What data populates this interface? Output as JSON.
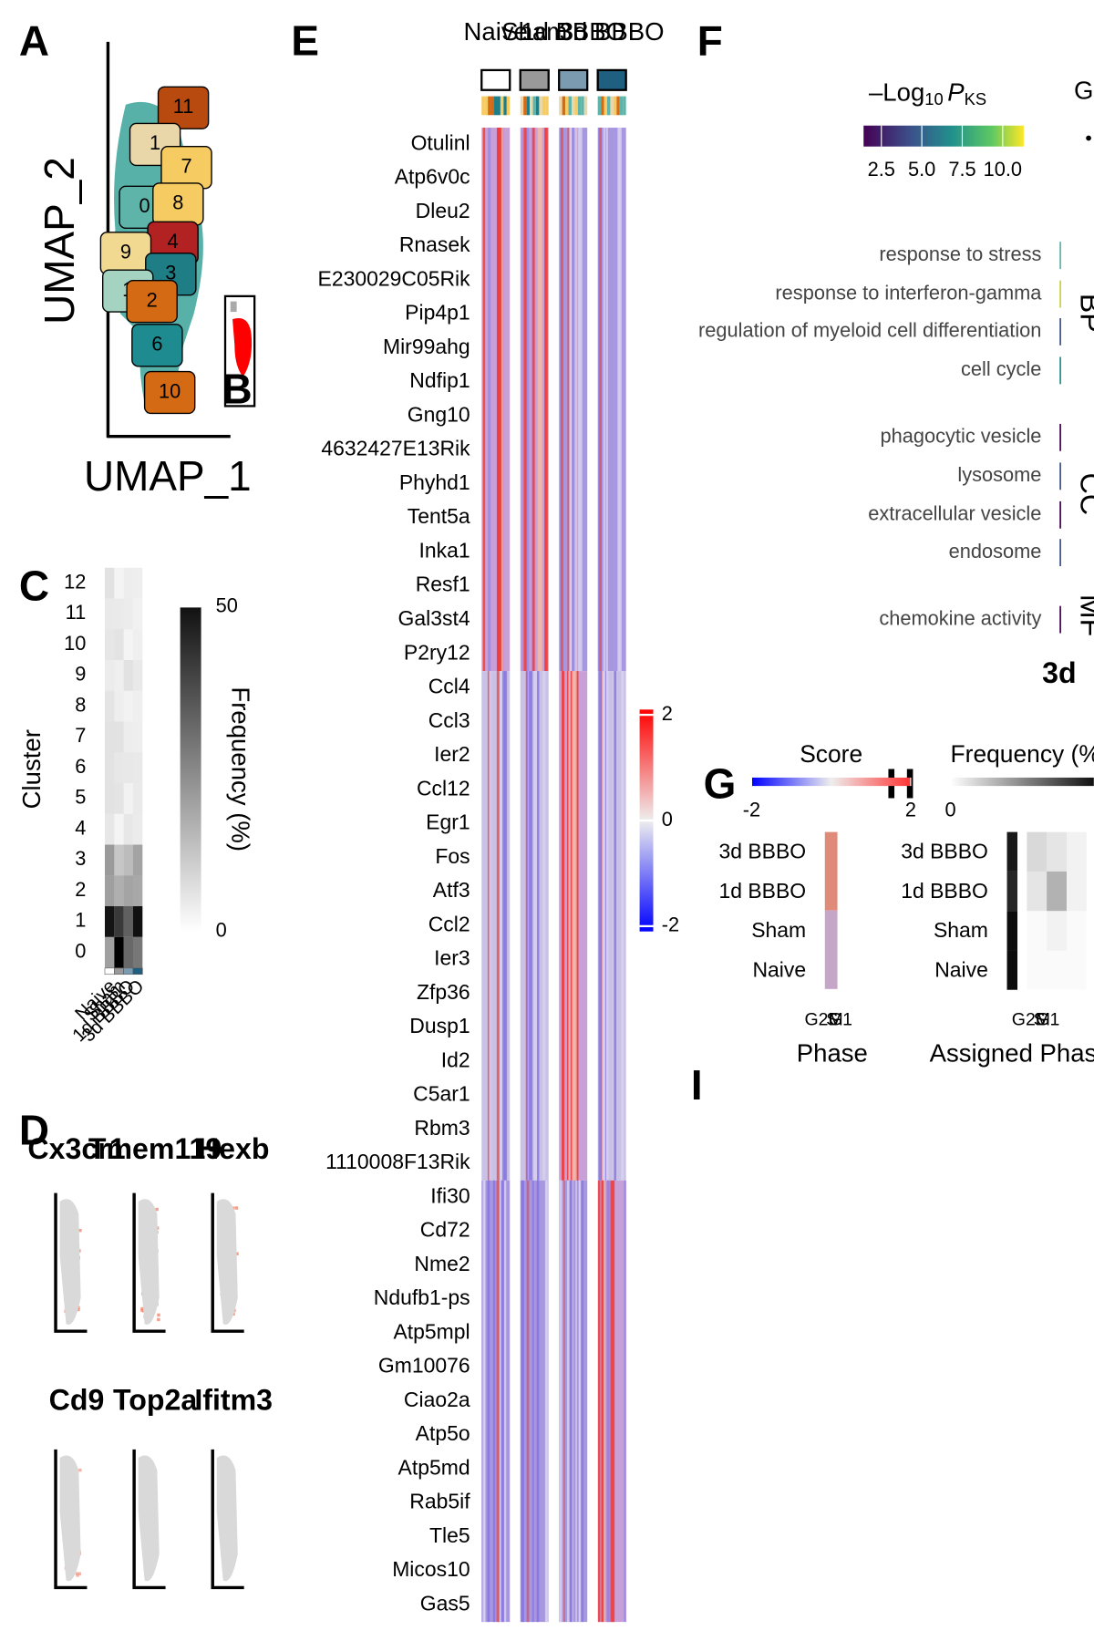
{
  "panel_labels": [
    "A",
    "B",
    "C",
    "D",
    "E",
    "F",
    "G",
    "H",
    "I"
  ],
  "umap": {
    "x_label": "UMAP_1",
    "y_label": "UMAP_2",
    "clusters": [
      "11",
      "1",
      "7",
      "0",
      "8",
      "4",
      "9",
      "3",
      "1",
      "2",
      "6",
      "10"
    ]
  },
  "cluster_freq": {
    "y_label": "Cluster",
    "clusters": [
      "0",
      "1",
      "2",
      "3",
      "4",
      "5",
      "6",
      "7",
      "8",
      "9",
      "10",
      "11",
      "12"
    ],
    "conditions": [
      "Naive",
      "Sham",
      "1d BBBO",
      "3d BBBO"
    ],
    "colorbar_label": "Frequency (%)",
    "colorbar_lim": [
      0,
      50
    ],
    "colorbar_ticks": [
      0,
      50
    ]
  },
  "feature_plots": {
    "genes": [
      "Cx3cr1",
      "Tmem119",
      "Hexb",
      "Cd9",
      "Top2a",
      "Ifitm3"
    ]
  },
  "heatmap": {
    "groups": [
      "Naive",
      "Sham",
      "1d BBBO",
      "3d BBBO"
    ],
    "genes": [
      "Otulinl",
      "Atp6v0c",
      "Dleu2",
      "Rnasek",
      "E230029C05Rik",
      "Pip4p1",
      "Mir99ahg",
      "Ndfip1",
      "Gng10",
      "4632427E13Rik",
      "Phyhd1",
      "Tent5a",
      "Inka1",
      "Resf1",
      "Gal3st4",
      "P2ry12",
      "Ccl4",
      "Ccl3",
      "Ier2",
      "Ccl12",
      "Egr1",
      "Fos",
      "Atf3",
      "Ccl2",
      "Ier3",
      "Zfp36",
      "Dusp1",
      "Id2",
      "C5ar1",
      "Rbm3",
      "1110008F13Rik",
      "Ifi30",
      "Cd72",
      "Nme2",
      "Ndufb1-ps",
      "Atp5mpl",
      "Gm10076",
      "Ciao2a",
      "Atp5o",
      "Atp5md",
      "Rab5if",
      "Tle5",
      "Micos10",
      "Gas5"
    ],
    "colorbar_lim": [
      -2.1,
      2.1
    ],
    "colorbar_ticks": [
      2,
      0,
      -2
    ]
  },
  "go": {
    "legend_title": [
      "–Log",
      "10",
      "P",
      "KS"
    ],
    "legend_lim": [
      1.4,
      11.3
    ],
    "legend_ticks": [
      2.5,
      {
        "value": 5,
        "label": "5.0"
      },
      7.5,
      {
        "value": 10,
        "label": "10.0"
      }
    ],
    "size_legend_title": "G",
    "terms": [
      "response to stress",
      "response to interferon-gamma",
      "regulation of myeloid cell differentiation",
      "cell cycle",
      "phagocytic vesicle",
      "lysosome",
      "extracellular vesicle",
      "endosome",
      "chemokine activity"
    ],
    "ontologies": [
      "BP",
      "CC",
      "MF"
    ],
    "x_label": "3d"
  },
  "phase_score": {
    "legend_title": "Score",
    "legend_lim": [
      -2,
      2
    ],
    "legend_ticks": [
      -2,
      2
    ],
    "rows": [
      "3d BBBO",
      "1d BBBO",
      "Sham",
      "Naive"
    ],
    "phases": [
      "G2M",
      "S",
      "G1"
    ],
    "x_label": "Phase"
  },
  "assigned_phase": {
    "legend_title": "Frequency (%)",
    "legend_lim": [
      0,
      100
    ],
    "legend_ticks": [
      0
    ],
    "rows": [
      "3d BBBO",
      "1d BBBO",
      "Sham",
      "Naive"
    ],
    "phases": [
      "G2M",
      "S",
      "G1"
    ],
    "x_label": "Assigned Phase"
  }
}
